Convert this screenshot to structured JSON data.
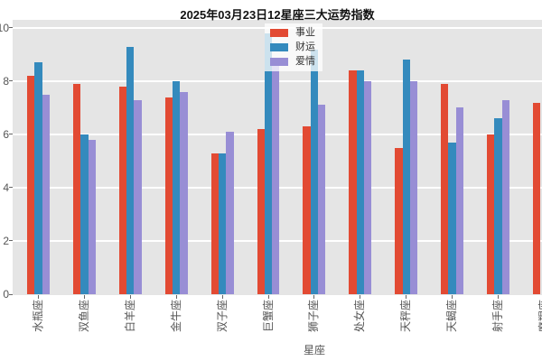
{
  "title": "2025年03月23日12星座三大运势指数",
  "colors": {
    "plot_background": "#E5E5E5",
    "grid": "#FFFFFF",
    "tick_text": "#555555",
    "title_text": "#111111",
    "career_red": "#E24A33",
    "wealth_blue": "#348ABD",
    "love_purple": "#988ED5"
  },
  "legend": {
    "items": [
      {
        "label": "事业",
        "color": "#E24A33"
      },
      {
        "label": "财运",
        "color": "#348ABD"
      },
      {
        "label": "爱情",
        "color": "#988ED5"
      }
    ]
  },
  "chart_data": {
    "type": "bar",
    "title": "2025年03月23日12星座三大运势指数",
    "xlabel": "星座",
    "ylabel": "",
    "ylim": [
      0,
      10
    ],
    "yticks": [
      0,
      2,
      4,
      6,
      8,
      10
    ],
    "grid": true,
    "legend_position": "upper center",
    "note": "12th group (摩羯座) is clipped at the right image edge; only its red bar is visible",
    "categories": [
      "水瓶座",
      "双鱼座",
      "白羊座",
      "金牛座",
      "双子座",
      "巨蟹座",
      "狮子座",
      "处女座",
      "天秤座",
      "天蝎座",
      "射手座",
      "摩羯座"
    ],
    "series": [
      {
        "name": "事业",
        "color": "#E24A33",
        "values": [
          8.2,
          7.9,
          7.8,
          7.4,
          5.3,
          6.2,
          6.3,
          8.4,
          5.5,
          7.9,
          6.0,
          7.2
        ]
      },
      {
        "name": "财运",
        "color": "#348ABD",
        "values": [
          8.7,
          6.0,
          9.3,
          8.0,
          5.3,
          9.8,
          9.2,
          8.4,
          8.8,
          5.7,
          6.6,
          null
        ]
      },
      {
        "name": "爱情",
        "color": "#988ED5",
        "values": [
          7.5,
          5.8,
          7.3,
          7.6,
          6.1,
          8.8,
          7.1,
          8.0,
          8.0,
          7.0,
          7.3,
          null
        ]
      }
    ]
  }
}
